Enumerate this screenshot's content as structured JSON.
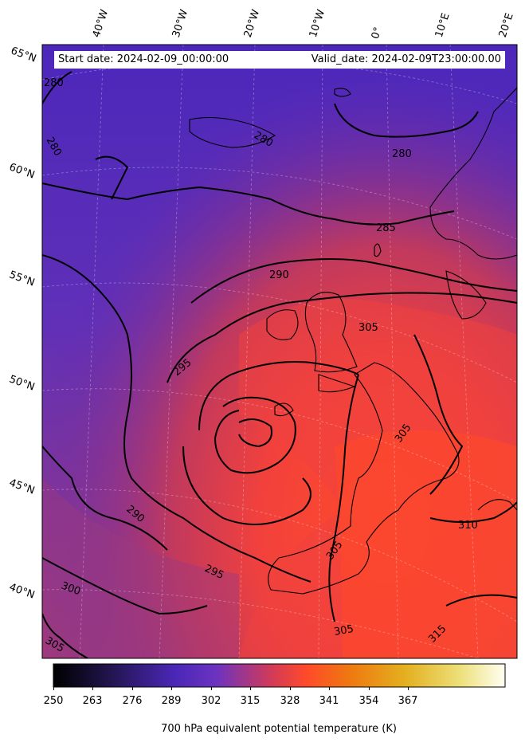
{
  "header": {
    "start_date": "Start date: 2024-02-09_00:00:00",
    "valid_date": "Valid_date: 2024-02-09T23:00:00.00"
  },
  "longitude_labels": [
    "40°W",
    "30°W",
    "20°W",
    "10°W",
    "0°",
    "10°E",
    "20°E"
  ],
  "latitude_labels": [
    "65°N",
    "60°N",
    "55°N",
    "50°N",
    "45°N",
    "40°N"
  ],
  "contour_labels": [
    "280",
    "280",
    "280",
    "280",
    "285",
    "290",
    "290",
    "295",
    "295",
    "300",
    "305",
    "305",
    "305",
    "305",
    "305",
    "310",
    "315"
  ],
  "colorbar": {
    "ticks": [
      "250",
      "263",
      "276",
      "289",
      "302",
      "315",
      "328",
      "341",
      "354",
      "367"
    ],
    "label": "700 hPa equivalent potential temperature (K)",
    "colors": [
      "#000000",
      "#2a1a5e",
      "#4b27b8",
      "#6a32c4",
      "#c23d6a",
      "#ff4a2a",
      "#f08010",
      "#e8b020",
      "#efe070",
      "#fffff0"
    ]
  },
  "theme": {
    "cold_color": "#4a26b8",
    "warm_color": "#ff4a2c",
    "contour_color": "#000000"
  }
}
